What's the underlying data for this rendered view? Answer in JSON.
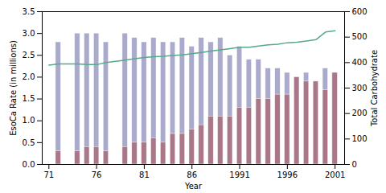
{
  "chart_data": {
    "type": "bar",
    "xlabel": "Year",
    "ylabel": "EsoCa Rate (in millions)",
    "y2label": "Total Carbohydrate",
    "x": [
      1971,
      1972,
      1973,
      1974,
      1975,
      1976,
      1977,
      1978,
      1979,
      1980,
      1981,
      1982,
      1983,
      1984,
      1985,
      1986,
      1987,
      1988,
      1989,
      1990,
      1991,
      1992,
      1993,
      1994,
      1995,
      1996,
      1997,
      1998,
      1999,
      2000,
      2001
    ],
    "xlim": [
      1970.3,
      2002.0
    ],
    "xticks": [
      {
        "value": 1971,
        "label": "71"
      },
      {
        "value": 1976,
        "label": "76"
      },
      {
        "value": 1981,
        "label": "81"
      },
      {
        "value": 1986,
        "label": "86"
      },
      1991,
      1996,
      2001
    ],
    "ylim": [
      0,
      3.5
    ],
    "yticks": [
      {
        "value": 0,
        "label": "0.0"
      },
      0.5,
      {
        "value": 1.0,
        "label": "1.0"
      },
      1.5,
      {
        "value": 2.0,
        "label": "2.0"
      },
      2.5,
      {
        "value": 3.0,
        "label": "3.0"
      },
      3.5
    ],
    "y2lim": [
      0,
      600
    ],
    "y2ticks": [
      0,
      100,
      200,
      300,
      400,
      500,
      600
    ],
    "grid": false,
    "stacked": false,
    "series": [
      {
        "color": "#aaaacc",
        "values": [
          0.0,
          2.8,
          0.0,
          3.0,
          3.0,
          3.0,
          2.8,
          0.0,
          3.0,
          2.9,
          2.8,
          2.9,
          2.8,
          2.8,
          2.9,
          2.7,
          2.9,
          2.8,
          2.9,
          2.5,
          2.7,
          2.4,
          2.4,
          2.2,
          2.2,
          2.1,
          2.0,
          2.1,
          1.9,
          2.2,
          2.1
        ]
      },
      {
        "color": "#aa7788",
        "values": [
          0.0,
          0.3,
          0.0,
          0.3,
          0.4,
          0.4,
          0.3,
          0.0,
          0.4,
          0.5,
          0.5,
          0.6,
          0.5,
          0.7,
          0.7,
          0.8,
          0.9,
          1.1,
          1.1,
          1.1,
          1.3,
          1.3,
          1.5,
          1.5,
          1.6,
          1.6,
          2.0,
          1.9,
          1.9,
          1.7,
          2.1
        ]
      },
      {
        "type": "line",
        "axis": "y2",
        "color": "#55aa88",
        "values": [
          390,
          395,
          395,
          395,
          392,
          392,
          400,
          405,
          410,
          415,
          420,
          423,
          425,
          428,
          430,
          435,
          440,
          445,
          450,
          455,
          460,
          460,
          465,
          470,
          472,
          478,
          480,
          485,
          490,
          520,
          525
        ]
      }
    ]
  }
}
